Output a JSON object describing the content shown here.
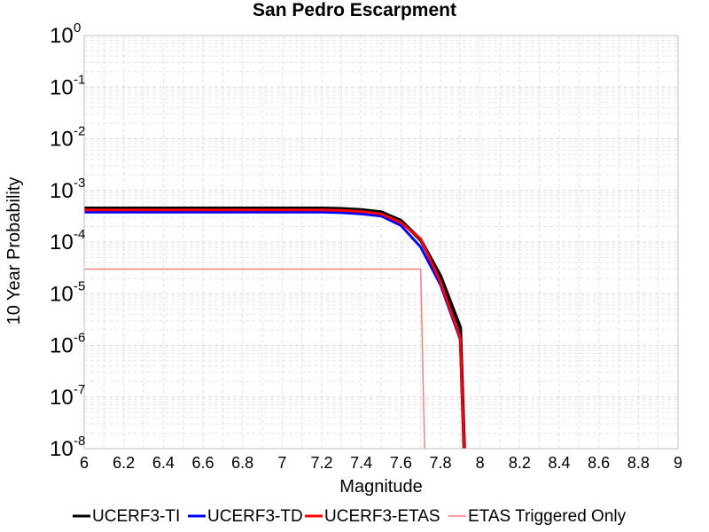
{
  "chart_data": {
    "type": "line",
    "title": "San Pedro Escarpment",
    "xlabel": "Magnitude",
    "ylabel": "10 Year Probability",
    "xlim": [
      6,
      9
    ],
    "ylim": [
      1e-08,
      1
    ],
    "yscale": "log",
    "grid": true,
    "legend_position": "bottom",
    "x_ticks": [
      "6",
      "6.2",
      "6.4",
      "6.6",
      "6.8",
      "7",
      "7.2",
      "7.4",
      "7.6",
      "7.8",
      "8",
      "8.2",
      "8.4",
      "8.6",
      "8.8",
      "9"
    ],
    "y_ticks": [
      {
        "base": "10",
        "exp": "-8"
      },
      {
        "base": "10",
        "exp": "-7"
      },
      {
        "base": "10",
        "exp": "-6"
      },
      {
        "base": "10",
        "exp": "-5"
      },
      {
        "base": "10",
        "exp": "-4"
      },
      {
        "base": "10",
        "exp": "-3"
      },
      {
        "base": "10",
        "exp": "-2"
      },
      {
        "base": "10",
        "exp": "-1"
      },
      {
        "base": "10",
        "exp": "0"
      }
    ],
    "series": [
      {
        "name": "UCERF3-TI",
        "color": "#000000",
        "x": [
          6.0,
          7.2,
          7.3,
          7.4,
          7.5,
          7.6,
          7.7,
          7.8,
          7.9,
          7.92
        ],
        "y": [
          0.00045,
          0.00045,
          0.00044,
          0.00042,
          0.00038,
          0.00026,
          0.00011,
          2.2e-05,
          2.2e-06,
          1e-08
        ]
      },
      {
        "name": "UCERF3-TD",
        "color": "#0000ff",
        "x": [
          6.0,
          7.2,
          7.3,
          7.4,
          7.5,
          7.6,
          7.7,
          7.8,
          7.9,
          7.92
        ],
        "y": [
          0.00038,
          0.00038,
          0.00037,
          0.00035,
          0.00032,
          0.00021,
          8e-05,
          1.5e-05,
          1.3e-06,
          1e-08
        ]
      },
      {
        "name": "UCERF3-ETAS",
        "color": "#ff0000",
        "x": [
          6.0,
          7.2,
          7.3,
          7.4,
          7.5,
          7.6,
          7.7,
          7.8,
          7.9,
          7.92
        ],
        "y": [
          0.00042,
          0.00042,
          0.00041,
          0.00039,
          0.00035,
          0.00024,
          0.000115,
          1.7e-05,
          1.4e-06,
          1e-08
        ]
      },
      {
        "name": "ETAS Triggered Only",
        "color": "#f08080",
        "x": [
          6.0,
          7.7,
          7.72
        ],
        "y": [
          3e-05,
          3e-05,
          1e-08
        ]
      }
    ]
  }
}
